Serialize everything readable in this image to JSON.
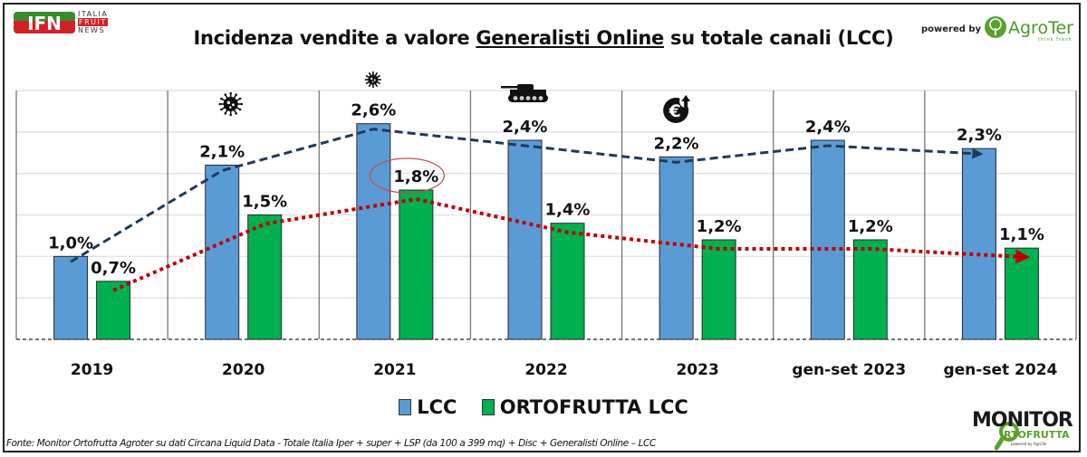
{
  "header": {
    "title_pre": "Incidenza vendite a valore ",
    "title_underlined": "Generalisti Online",
    "title_post": " su totale canali (LCC)",
    "ifn_logo": {
      "letters": "IFN",
      "line1": "ITALIA",
      "line2": "FRUIT",
      "line3": "NEWS"
    },
    "powered_by": "powered by",
    "agroter": {
      "name": "AgroTer",
      "tagline": "think fresh"
    }
  },
  "footer": {
    "source": "Fonte: Monitor Ortofrutta Agroter su dati Circana Liquid Data - Totale Italia Iper + super + LSP (da 100 a 399 mq) + Disc + Generalisti Online – LCC",
    "monitor_logo": {
      "top": "MONITOR",
      "bottom": "RTOFRUTTA",
      "powered": "powered by AgroTer"
    }
  },
  "colors": {
    "lcc": "#5b9bd5",
    "ortofrutta": "#00b050",
    "lcc_trend": "#1f3a5a",
    "ortofrutta_trend": "#c00000",
    "grid": "#e3e3e3",
    "separator": "#777777"
  },
  "chart_data": {
    "type": "bar",
    "title": "Incidenza vendite a valore Generalisti Online su totale canali (LCC)",
    "xlabel": "",
    "ylabel": "",
    "ylim": [
      0,
      3.0
    ],
    "grid": true,
    "y_grid_step": 0.5,
    "y_tick_labels_visible": false,
    "legend_position": "bottom",
    "categories": [
      "2019",
      "2020",
      "2021",
      "2022",
      "2023",
      "gen-set 2023",
      "gen-set 2024"
    ],
    "series": [
      {
        "name": "LCC",
        "values": [
          1.0,
          2.1,
          2.6,
          2.4,
          2.2,
          2.4,
          2.3
        ],
        "labels": [
          "1,0%",
          "2,1%",
          "2,6%",
          "2,4%",
          "2,2%",
          "2,4%",
          "2,3%"
        ],
        "trendline": "dashed"
      },
      {
        "name": "ORTOFRUTTA LCC",
        "values": [
          0.7,
          1.5,
          1.8,
          1.4,
          1.2,
          1.2,
          1.1
        ],
        "labels": [
          "0,7%",
          "1,5%",
          "1,8%",
          "1,4%",
          "1,2%",
          "1,2%",
          "1,1%"
        ],
        "trendline": "dotted"
      }
    ],
    "annotations": [
      {
        "category": "2020",
        "icon": "virus-icon",
        "meaning": "COVID-19"
      },
      {
        "category": "2021",
        "icon": "virus-icon",
        "meaning": "COVID-19"
      },
      {
        "category": "2022",
        "icon": "tank-icon",
        "meaning": "war"
      },
      {
        "category": "2023",
        "icon": "euro-up-icon",
        "meaning": "inflation"
      },
      {
        "category": "2021",
        "series": "ORTOFRUTTA LCC",
        "highlight": "circled-label"
      }
    ]
  }
}
